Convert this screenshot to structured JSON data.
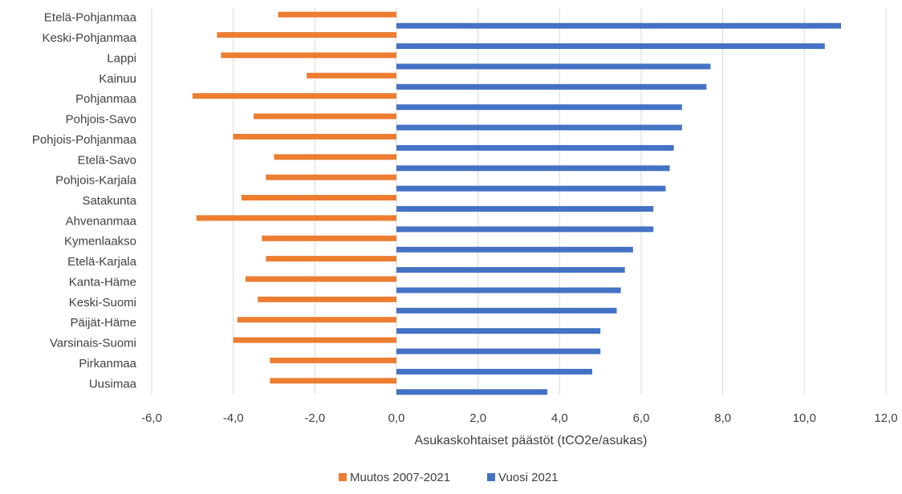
{
  "chart_data": {
    "type": "bar",
    "orientation": "horizontal",
    "categories": [
      "Etelä-Pohjanmaa",
      "Keski-Pohjanmaa",
      "Lappi",
      "Kainuu",
      "Pohjanmaa",
      "Pohjois-Savo",
      "Pohjois-Pohjanmaa",
      "Etelä-Savo",
      "Pohjois-Karjala",
      "Satakunta",
      "Ahvenanmaa",
      "Kymenlaakso",
      "Etelä-Karjala",
      "Kanta-Häme",
      "Keski-Suomi",
      "Päijät-Häme",
      "Varsinais-Suomi",
      "Pirkanmaa",
      "Uusimaa"
    ],
    "series": [
      {
        "name": "Muutos 2007-2021",
        "color": "#ED7D31",
        "values": [
          -2.9,
          -4.4,
          -4.3,
          -2.2,
          -5.0,
          -3.5,
          -4.0,
          -3.0,
          -3.2,
          -3.8,
          -4.9,
          -3.3,
          -3.2,
          -3.7,
          -3.4,
          -3.9,
          -4.0,
          -3.1,
          -3.1
        ]
      },
      {
        "name": "Vuosi 2021",
        "color": "#4472C4",
        "values": [
          10.9,
          10.5,
          7.7,
          7.6,
          7.0,
          7.0,
          6.8,
          6.7,
          6.6,
          6.3,
          6.3,
          5.8,
          5.6,
          5.5,
          5.4,
          5.0,
          5.0,
          4.8,
          3.7
        ]
      }
    ],
    "xlabel": "Asukaskohtaiset päästöt (tCO2e/asukas)",
    "xlim": [
      -6,
      12
    ],
    "xticks": [
      "-6,0",
      "-4,0",
      "-2,0",
      "0,0",
      "2,0",
      "4,0",
      "6,0",
      "8,0",
      "10,0",
      "12,0"
    ],
    "grid": "vertical",
    "legend": "bottom-center"
  }
}
